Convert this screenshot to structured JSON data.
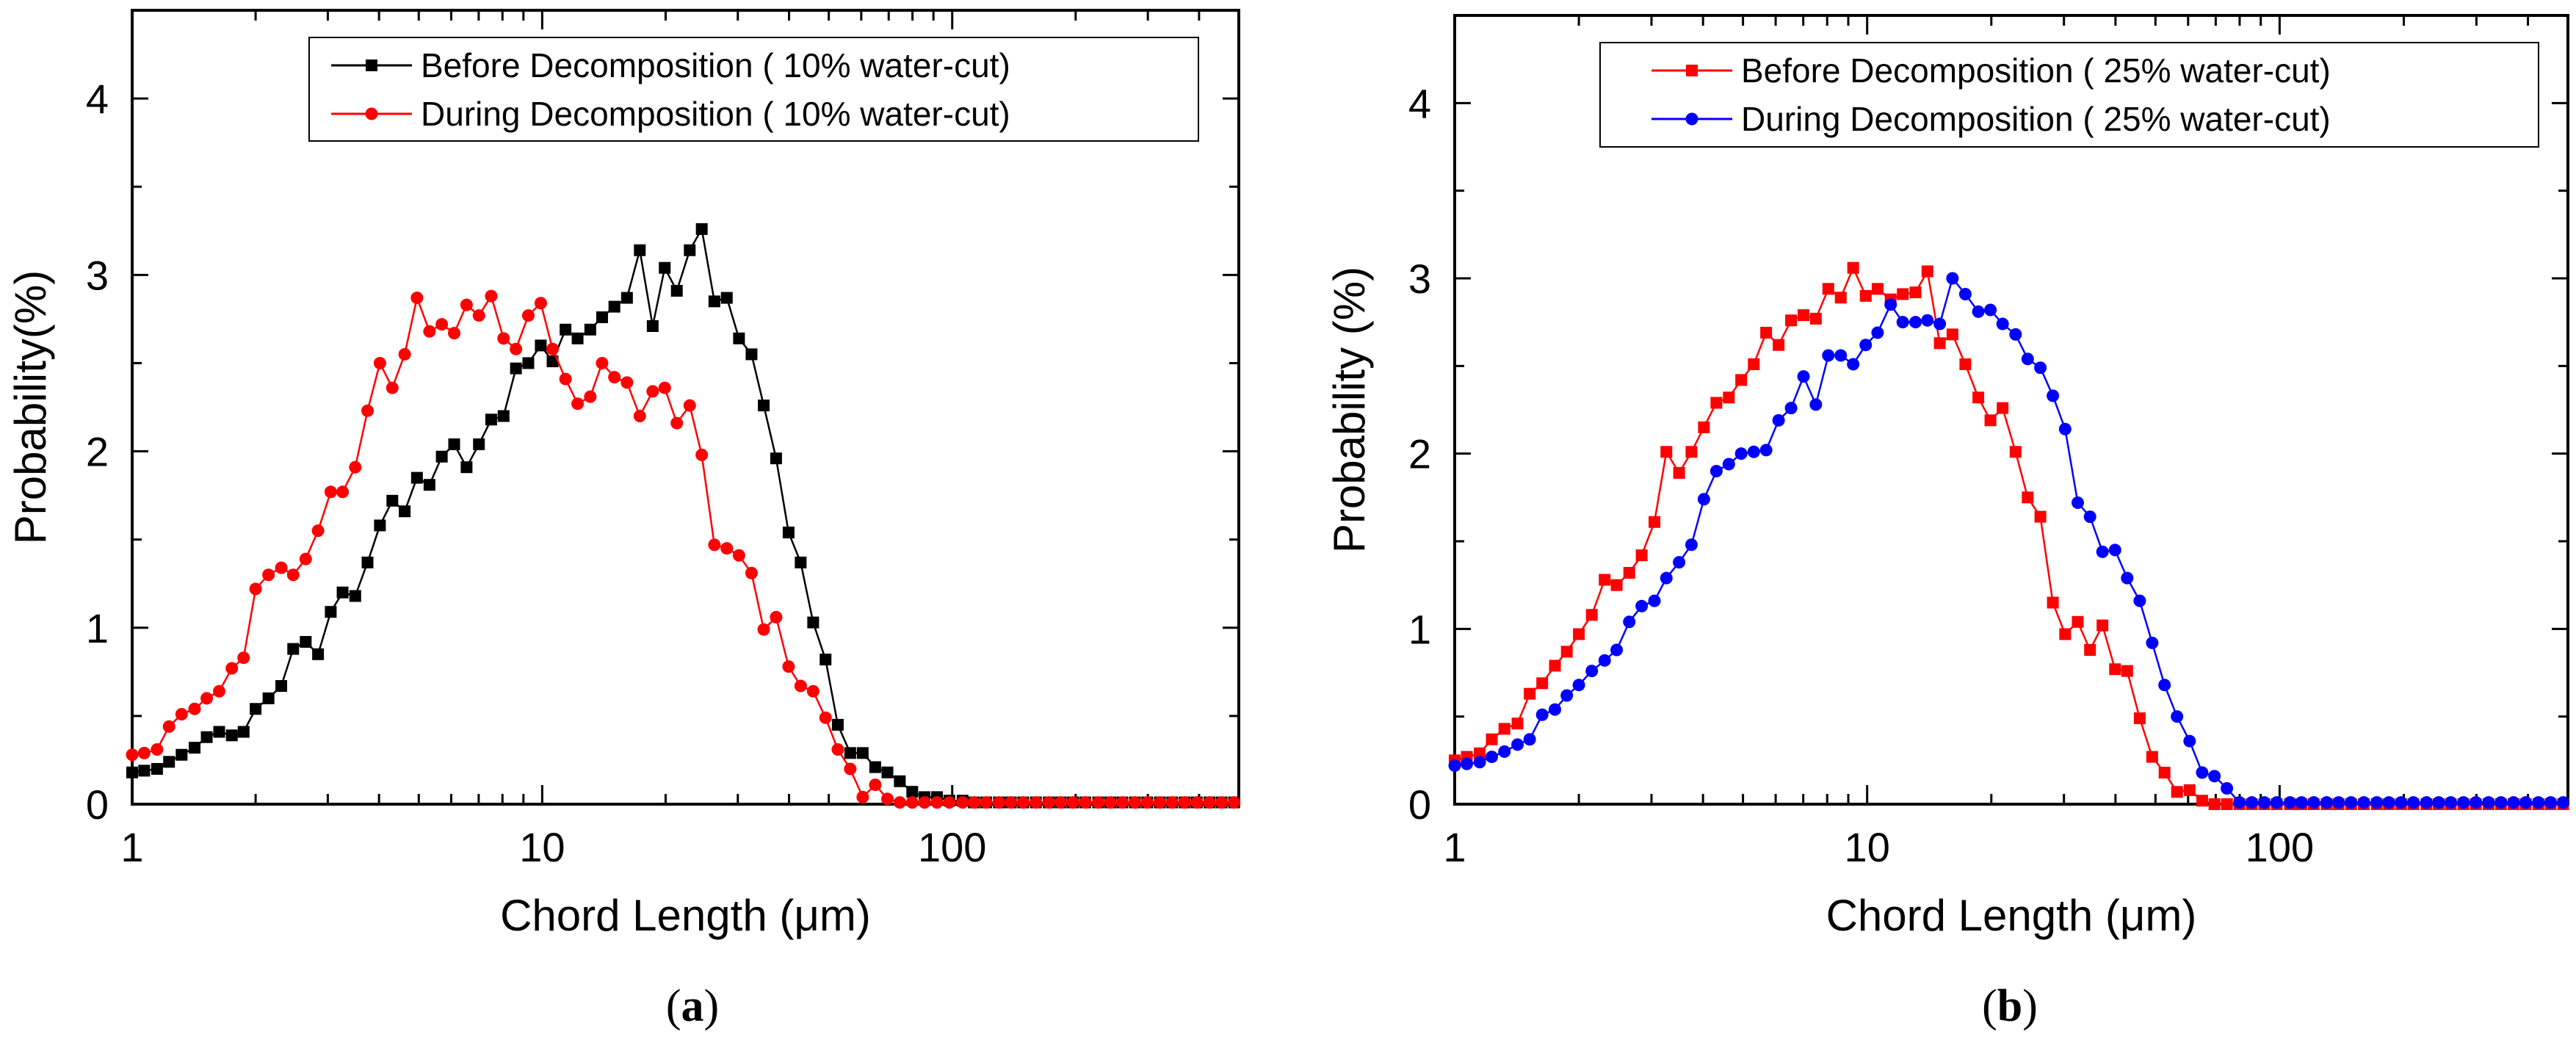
{
  "chart_data": [
    {
      "type": "line",
      "panel": "a",
      "xlabel": "Chord Length (μm)",
      "ylabel": "Probability(%)",
      "xscale": "log",
      "xlim": [
        1,
        500
      ],
      "ylim": [
        0,
        4.5
      ],
      "xticks": [
        "1",
        "10",
        "100"
      ],
      "yticks": [
        "0",
        "1",
        "2",
        "3",
        "4"
      ],
      "legend_position": "top-right",
      "x": [
        1,
        1.07,
        1.15,
        1.23,
        1.32,
        1.42,
        1.52,
        1.63,
        1.75,
        1.87,
        2.0,
        2.15,
        2.31,
        2.47,
        2.65,
        2.84,
        3.05,
        3.26,
        3.5,
        3.75,
        4.02,
        4.31,
        4.62,
        4.95,
        5.31,
        5.69,
        6.1,
        6.54,
        7.01,
        7.51,
        8.05,
        8.63,
        9.25,
        9.92,
        10.6,
        11.4,
        12.2,
        13.1,
        14.0,
        15.0,
        16.1,
        17.3,
        18.6,
        19.9,
        21.3,
        22.9,
        24.5,
        26.3,
        28.2,
        30.2,
        32.4,
        34.7,
        37.2,
        39.9,
        42.7,
        45.8,
        49.1,
        52.6,
        56.4,
        60.5,
        64.9,
        69.5,
        74.5,
        79.9,
        85.6,
        91.8,
        98.4,
        106,
        113,
        121,
        130,
        139,
        149,
        160,
        172,
        184,
        197,
        211,
        227,
        243,
        260,
        279,
        299,
        321,
        344,
        369,
        395,
        424,
        454,
        487
      ],
      "series": [
        {
          "name": "Before Decomposition ( 10% water-cut)",
          "color": "#000000",
          "marker": "square",
          "values": [
            0.18,
            0.19,
            0.2,
            0.24,
            0.28,
            0.32,
            0.38,
            0.41,
            0.39,
            0.41,
            0.54,
            0.6,
            0.67,
            0.88,
            0.92,
            0.85,
            1.09,
            1.2,
            1.18,
            1.37,
            1.58,
            1.72,
            1.66,
            1.85,
            1.81,
            1.97,
            2.04,
            1.91,
            2.04,
            2.18,
            2.2,
            2.47,
            2.5,
            2.6,
            2.51,
            2.69,
            2.64,
            2.69,
            2.76,
            2.82,
            2.87,
            3.14,
            2.71,
            3.04,
            2.91,
            3.14,
            3.26,
            2.85,
            2.87,
            2.64,
            2.55,
            2.26,
            1.96,
            1.54,
            1.37,
            1.03,
            0.82,
            0.45,
            0.29,
            0.29,
            0.21,
            0.18,
            0.13,
            0.07,
            0.04,
            0.04,
            0.02,
            0.02,
            0.01,
            0.01,
            0.01,
            0.01,
            0.01,
            0.01,
            0.01,
            0.01,
            0.01,
            0.01,
            0.01,
            0.01,
            0.01,
            0.01,
            0.01,
            0.01,
            0.01,
            0.01,
            0.01,
            0.01,
            0.01,
            0.01
          ]
        },
        {
          "name": "During Decomposition ( 10% water-cut)",
          "color": "#ff0000",
          "marker": "circle",
          "values": [
            0.28,
            0.29,
            0.31,
            0.44,
            0.51,
            0.54,
            0.6,
            0.64,
            0.77,
            0.83,
            1.22,
            1.3,
            1.34,
            1.3,
            1.39,
            1.55,
            1.77,
            1.77,
            1.91,
            2.23,
            2.5,
            2.36,
            2.55,
            2.87,
            2.68,
            2.72,
            2.67,
            2.83,
            2.77,
            2.88,
            2.64,
            2.58,
            2.77,
            2.84,
            2.58,
            2.41,
            2.27,
            2.31,
            2.5,
            2.42,
            2.39,
            2.2,
            2.34,
            2.36,
            2.16,
            2.26,
            1.98,
            1.47,
            1.45,
            1.41,
            1.31,
            0.99,
            1.06,
            0.78,
            0.67,
            0.64,
            0.49,
            0.31,
            0.2,
            0.04,
            0.11,
            0.03,
            0.01,
            0.01,
            0.01,
            0.01,
            0.01,
            0.01,
            0.01,
            0.01,
            0.01,
            0.01,
            0.01,
            0.01,
            0.01,
            0.01,
            0.01,
            0.01,
            0.01,
            0.01,
            0.01,
            0.01,
            0.01,
            0.01,
            0.01,
            0.01,
            0.01,
            0.01,
            0.01,
            0.01
          ]
        }
      ]
    },
    {
      "type": "line",
      "panel": "b",
      "xlabel": "Chord Length (μm)",
      "ylabel": "Probability (%)",
      "xscale": "log",
      "xlim": [
        1,
        500
      ],
      "ylim": [
        0,
        4.5
      ],
      "xticks": [
        "1",
        "10",
        "100"
      ],
      "yticks": [
        "0",
        "1",
        "2",
        "3",
        "4"
      ],
      "legend_position": "top-right",
      "x": [
        1,
        1.07,
        1.15,
        1.23,
        1.32,
        1.42,
        1.52,
        1.63,
        1.75,
        1.87,
        2.0,
        2.15,
        2.31,
        2.47,
        2.65,
        2.84,
        3.05,
        3.26,
        3.5,
        3.75,
        4.02,
        4.31,
        4.62,
        4.95,
        5.31,
        5.69,
        6.1,
        6.54,
        7.01,
        7.51,
        8.05,
        8.63,
        9.25,
        9.92,
        10.6,
        11.4,
        12.2,
        13.1,
        14.0,
        15.0,
        16.1,
        17.3,
        18.6,
        19.9,
        21.3,
        22.9,
        24.5,
        26.3,
        28.2,
        30.2,
        32.4,
        34.7,
        37.2,
        39.9,
        42.7,
        45.8,
        49.1,
        52.6,
        56.4,
        60.5,
        64.9,
        69.5,
        74.5,
        79.9,
        85.6,
        91.8,
        98.4,
        106,
        113,
        121,
        130,
        139,
        149,
        160,
        172,
        184,
        197,
        211,
        227,
        243,
        260,
        279,
        299,
        321,
        344,
        369,
        395,
        424,
        454,
        487
      ],
      "series": [
        {
          "name": "Before Decomposition ( 25% water-cut)",
          "color": "#ff0000",
          "marker": "square",
          "values": [
            0.25,
            0.27,
            0.29,
            0.37,
            0.43,
            0.46,
            0.63,
            0.69,
            0.79,
            0.87,
            0.97,
            1.08,
            1.28,
            1.25,
            1.32,
            1.42,
            1.61,
            2.01,
            1.89,
            2.01,
            2.15,
            2.29,
            2.32,
            2.42,
            2.51,
            2.69,
            2.62,
            2.76,
            2.79,
            2.77,
            2.94,
            2.89,
            3.06,
            2.9,
            2.94,
            2.88,
            2.91,
            2.92,
            3.04,
            2.63,
            2.68,
            2.51,
            2.32,
            2.19,
            2.26,
            2.01,
            1.75,
            1.64,
            1.15,
            0.97,
            1.04,
            0.88,
            1.02,
            0.77,
            0.76,
            0.49,
            0.27,
            0.18,
            0.07,
            0.08,
            0.02,
            0,
            0,
            0,
            0,
            0,
            0,
            0,
            0,
            0,
            0,
            0,
            0,
            0,
            0,
            0,
            0,
            0,
            0,
            0,
            0,
            0,
            0,
            0,
            0,
            0,
            0,
            0,
            0,
            0
          ]
        },
        {
          "name": "During Decomposition ( 25% water-cut)",
          "color": "#0000ff",
          "marker": "circle",
          "values": [
            0.22,
            0.23,
            0.24,
            0.27,
            0.3,
            0.34,
            0.37,
            0.51,
            0.54,
            0.62,
            0.68,
            0.76,
            0.82,
            0.88,
            1.04,
            1.13,
            1.16,
            1.29,
            1.38,
            1.48,
            1.74,
            1.9,
            1.94,
            2.0,
            2.01,
            2.02,
            2.19,
            2.26,
            2.44,
            2.28,
            2.56,
            2.56,
            2.51,
            2.62,
            2.69,
            2.85,
            2.75,
            2.75,
            2.76,
            2.74,
            3.0,
            2.91,
            2.81,
            2.82,
            2.74,
            2.68,
            2.54,
            2.49,
            2.33,
            2.14,
            1.72,
            1.64,
            1.44,
            1.45,
            1.29,
            1.16,
            0.92,
            0.68,
            0.5,
            0.36,
            0.18,
            0.16,
            0.09,
            0.01,
            0.01,
            0.01,
            0.01,
            0.01,
            0.01,
            0.01,
            0.01,
            0.01,
            0.01,
            0.01,
            0.01,
            0.01,
            0.01,
            0.01,
            0.01,
            0.01,
            0.01,
            0.01,
            0.01,
            0.01,
            0.01,
            0.01,
            0.01,
            0.01,
            0.01,
            0.01
          ]
        }
      ]
    }
  ],
  "captions": [
    "a",
    "b"
  ]
}
